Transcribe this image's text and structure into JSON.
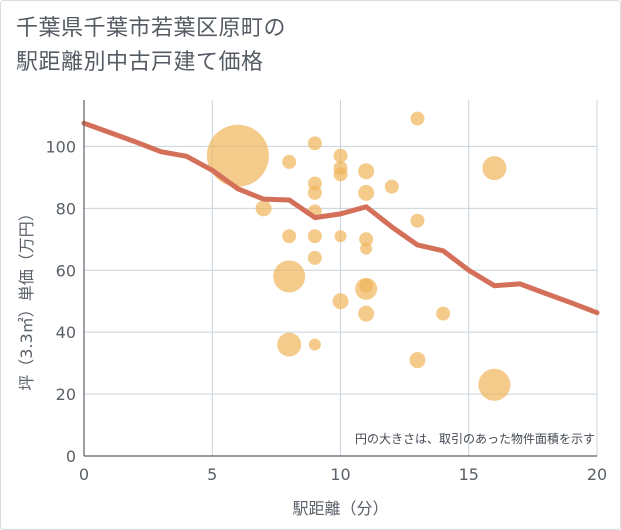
{
  "title_line1": "千葉県千葉市若葉区原町の",
  "title_line2": "駅距離別中古戸建て価格",
  "chart_data": {
    "type": "scatter",
    "title": "千葉県千葉市若葉区原町の駅距離別中古戸建て価格",
    "xlabel": "駅距離（分）",
    "ylabel": "坪（3.3㎡）単価（万円）",
    "xlim": [
      0,
      20
    ],
    "ylim": [
      0,
      115
    ],
    "xticks": [
      0,
      5,
      10,
      15,
      20
    ],
    "yticks": [
      0,
      20,
      40,
      60,
      80,
      100
    ],
    "grid": true,
    "note": "円の大きさは、取引のあった物件面積を示す",
    "colors": {
      "bubble": "#f0b55a",
      "trend": "#d4705a",
      "grid": "#c9d3dc",
      "axis": "#5a6068"
    },
    "points": [
      {
        "x": 6,
        "y": 97,
        "size": 31
      },
      {
        "x": 7,
        "y": 80,
        "size": 8
      },
      {
        "x": 8,
        "y": 95,
        "size": 7
      },
      {
        "x": 8,
        "y": 71,
        "size": 7
      },
      {
        "x": 8,
        "y": 58,
        "size": 16
      },
      {
        "x": 8,
        "y": 36,
        "size": 12
      },
      {
        "x": 9,
        "y": 101,
        "size": 7
      },
      {
        "x": 9,
        "y": 88,
        "size": 7
      },
      {
        "x": 9,
        "y": 85,
        "size": 7
      },
      {
        "x": 9,
        "y": 79,
        "size": 7
      },
      {
        "x": 9,
        "y": 71,
        "size": 7
      },
      {
        "x": 9,
        "y": 64,
        "size": 7
      },
      {
        "x": 9,
        "y": 36,
        "size": 6
      },
      {
        "x": 10,
        "y": 97,
        "size": 7
      },
      {
        "x": 10,
        "y": 93,
        "size": 7
      },
      {
        "x": 10,
        "y": 91,
        "size": 7
      },
      {
        "x": 10,
        "y": 71,
        "size": 6
      },
      {
        "x": 10,
        "y": 50,
        "size": 8
      },
      {
        "x": 11,
        "y": 92,
        "size": 8
      },
      {
        "x": 11,
        "y": 85,
        "size": 8
      },
      {
        "x": 11,
        "y": 70,
        "size": 7
      },
      {
        "x": 11,
        "y": 67,
        "size": 6
      },
      {
        "x": 11,
        "y": 55,
        "size": 7
      },
      {
        "x": 11,
        "y": 54,
        "size": 11
      },
      {
        "x": 11,
        "y": 46,
        "size": 8
      },
      {
        "x": 12,
        "y": 87,
        "size": 7
      },
      {
        "x": 13,
        "y": 109,
        "size": 7
      },
      {
        "x": 13,
        "y": 76,
        "size": 7
      },
      {
        "x": 13,
        "y": 31,
        "size": 8
      },
      {
        "x": 14,
        "y": 46,
        "size": 7
      },
      {
        "x": 16,
        "y": 93,
        "size": 12
      },
      {
        "x": 16,
        "y": 23,
        "size": 16
      }
    ],
    "trend": [
      {
        "x": 0,
        "y": 107.5
      },
      {
        "x": 1,
        "y": 104.5
      },
      {
        "x": 2,
        "y": 101.5
      },
      {
        "x": 3,
        "y": 98.3
      },
      {
        "x": 4,
        "y": 96.8
      },
      {
        "x": 5,
        "y": 92.3
      },
      {
        "x": 6,
        "y": 86.3
      },
      {
        "x": 7,
        "y": 83
      },
      {
        "x": 8,
        "y": 82.7
      },
      {
        "x": 9,
        "y": 77
      },
      {
        "x": 10,
        "y": 78.2
      },
      {
        "x": 11,
        "y": 80.5
      },
      {
        "x": 12,
        "y": 74
      },
      {
        "x": 13,
        "y": 68.2
      },
      {
        "x": 14,
        "y": 66.3
      },
      {
        "x": 15,
        "y": 60
      },
      {
        "x": 16,
        "y": 55
      },
      {
        "x": 17,
        "y": 55.6
      },
      {
        "x": 18,
        "y": 52.5
      },
      {
        "x": 19,
        "y": 49.5
      },
      {
        "x": 20,
        "y": 46.3
      }
    ]
  }
}
